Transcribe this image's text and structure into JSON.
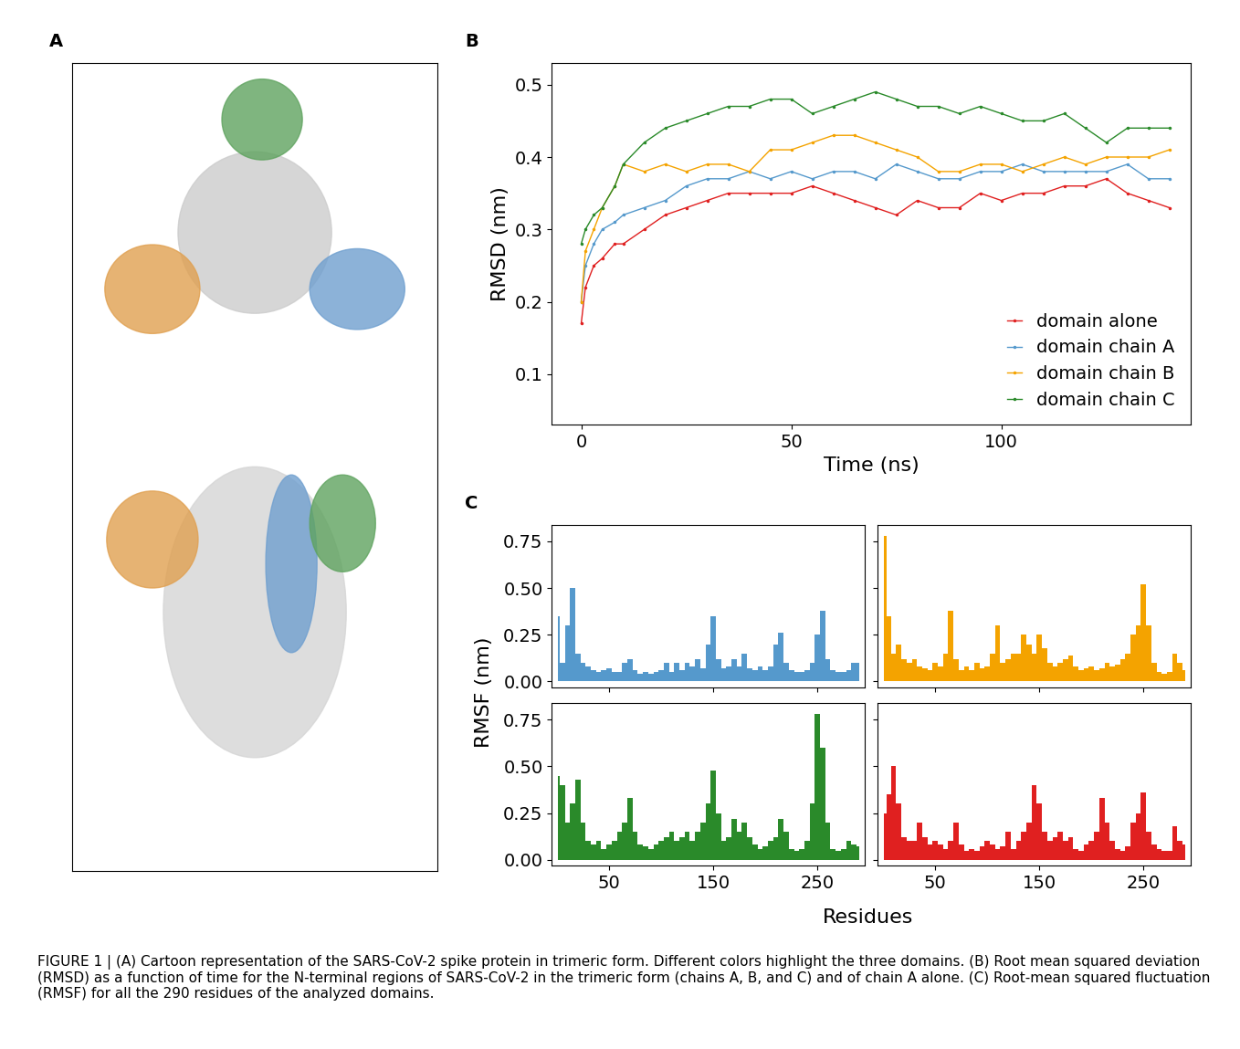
{
  "panel_labels": [
    "A",
    "B",
    "C"
  ],
  "caption": "FIGURE 1 | (A) Cartoon representation of the SARS-CoV-2 spike protein in trimeric form. Different colors highlight the three domains. (B) Root mean squared deviation (RMSD) as a function of time for the N-terminal regions of SARS-CoV-2 in the trimeric form (chains A, B, and C) and of chain A alone. (C) Root-mean squared fluctuation (RMSF) for all the 290 residues of the analyzed domains.",
  "chart_data": [
    {
      "type": "line",
      "marker": "point",
      "xlabel": "Time (ns)",
      "ylabel": "RMSD (nm)",
      "xlim": [
        -7,
        145
      ],
      "xticks": [
        0,
        50,
        100
      ],
      "ylim": [
        0.03,
        0.53
      ],
      "yticks": [
        0.1,
        0.2,
        0.3,
        0.4,
        0.5
      ],
      "legend": "lower right",
      "grid": false,
      "x": [
        0,
        1,
        3,
        5,
        8,
        10,
        15,
        20,
        25,
        30,
        35,
        40,
        45,
        50,
        55,
        60,
        65,
        70,
        75,
        80,
        85,
        90,
        95,
        100,
        105,
        110,
        115,
        120,
        125,
        130,
        135,
        140
      ],
      "series": [
        {
          "name": "domain alone",
          "color": "#e02020",
          "values": [
            0.17,
            0.22,
            0.25,
            0.26,
            0.28,
            0.28,
            0.3,
            0.32,
            0.33,
            0.34,
            0.35,
            0.35,
            0.35,
            0.35,
            0.36,
            0.35,
            0.34,
            0.33,
            0.32,
            0.34,
            0.33,
            0.33,
            0.35,
            0.34,
            0.35,
            0.35,
            0.36,
            0.36,
            0.37,
            0.35,
            0.34,
            0.33
          ]
        },
        {
          "name": "domain chain A",
          "color": "#5599cc",
          "values": [
            0.2,
            0.25,
            0.28,
            0.3,
            0.31,
            0.32,
            0.33,
            0.34,
            0.36,
            0.37,
            0.37,
            0.38,
            0.37,
            0.38,
            0.37,
            0.38,
            0.38,
            0.37,
            0.39,
            0.38,
            0.37,
            0.37,
            0.38,
            0.38,
            0.39,
            0.38,
            0.38,
            0.38,
            0.38,
            0.39,
            0.37,
            0.37
          ]
        },
        {
          "name": "domain chain B",
          "color": "#f4a300",
          "values": [
            0.2,
            0.27,
            0.3,
            0.33,
            0.36,
            0.39,
            0.38,
            0.39,
            0.38,
            0.39,
            0.39,
            0.38,
            0.41,
            0.41,
            0.42,
            0.43,
            0.43,
            0.42,
            0.41,
            0.4,
            0.38,
            0.38,
            0.39,
            0.39,
            0.38,
            0.39,
            0.4,
            0.39,
            0.4,
            0.4,
            0.4,
            0.41
          ]
        },
        {
          "name": "domain chain C",
          "color": "#2a8a2a",
          "values": [
            0.28,
            0.3,
            0.32,
            0.33,
            0.36,
            0.39,
            0.42,
            0.44,
            0.45,
            0.46,
            0.47,
            0.47,
            0.48,
            0.48,
            0.46,
            0.47,
            0.48,
            0.49,
            0.48,
            0.47,
            0.47,
            0.46,
            0.47,
            0.46,
            0.45,
            0.45,
            0.46,
            0.44,
            0.42,
            0.44,
            0.44,
            0.44
          ]
        }
      ]
    },
    {
      "type": "area",
      "xlabel": "Residues",
      "ylabel": "RMSF (nm)",
      "xlim": [
        -5,
        295
      ],
      "xticks": [
        50,
        150,
        250
      ],
      "ylim": [
        -0.03,
        0.84
      ],
      "yticks": [
        {
          "value": 0.0,
          "label": "0.00"
        },
        {
          "value": 0.25,
          "label": "0.25"
        },
        {
          "value": 0.5,
          "label": "0.50"
        },
        {
          "value": 0.75,
          "label": "0.75"
        }
      ],
      "x": [
        1,
        5,
        10,
        15,
        20,
        25,
        30,
        35,
        40,
        45,
        50,
        55,
        60,
        65,
        70,
        75,
        80,
        85,
        90,
        95,
        100,
        105,
        110,
        115,
        120,
        125,
        130,
        135,
        140,
        145,
        150,
        155,
        160,
        165,
        170,
        175,
        180,
        185,
        190,
        195,
        200,
        205,
        210,
        215,
        220,
        225,
        230,
        235,
        240,
        245,
        250,
        255,
        260,
        265,
        270,
        275,
        280,
        285,
        290
      ],
      "series": [
        {
          "color": "#5599cc",
          "values": [
            0.35,
            0.1,
            0.3,
            0.5,
            0.15,
            0.1,
            0.08,
            0.06,
            0.05,
            0.06,
            0.07,
            0.05,
            0.05,
            0.1,
            0.12,
            0.06,
            0.04,
            0.05,
            0.04,
            0.05,
            0.06,
            0.1,
            0.05,
            0.1,
            0.06,
            0.1,
            0.08,
            0.12,
            0.07,
            0.2,
            0.35,
            0.12,
            0.07,
            0.08,
            0.12,
            0.08,
            0.15,
            0.07,
            0.06,
            0.08,
            0.06,
            0.08,
            0.2,
            0.26,
            0.1,
            0.06,
            0.05,
            0.05,
            0.06,
            0.1,
            0.25,
            0.38,
            0.12,
            0.06,
            0.05,
            0.05,
            0.06,
            0.1,
            0.1
          ]
        },
        {
          "color": "#f4a300",
          "values": [
            0.78,
            0.35,
            0.15,
            0.2,
            0.12,
            0.1,
            0.12,
            0.08,
            0.07,
            0.06,
            0.1,
            0.08,
            0.15,
            0.38,
            0.12,
            0.06,
            0.08,
            0.06,
            0.1,
            0.07,
            0.08,
            0.15,
            0.3,
            0.1,
            0.12,
            0.15,
            0.15,
            0.25,
            0.2,
            0.15,
            0.25,
            0.18,
            0.1,
            0.08,
            0.1,
            0.12,
            0.14,
            0.08,
            0.06,
            0.07,
            0.08,
            0.06,
            0.07,
            0.1,
            0.08,
            0.09,
            0.12,
            0.15,
            0.25,
            0.3,
            0.52,
            0.3,
            0.1,
            0.05,
            0.04,
            0.05,
            0.15,
            0.1,
            0.06
          ]
        },
        {
          "color": "#2a8a2a",
          "values": [
            0.45,
            0.4,
            0.2,
            0.3,
            0.43,
            0.2,
            0.1,
            0.08,
            0.1,
            0.06,
            0.08,
            0.1,
            0.15,
            0.2,
            0.33,
            0.15,
            0.08,
            0.07,
            0.06,
            0.08,
            0.1,
            0.12,
            0.15,
            0.1,
            0.12,
            0.15,
            0.1,
            0.15,
            0.2,
            0.3,
            0.48,
            0.25,
            0.1,
            0.12,
            0.22,
            0.15,
            0.2,
            0.12,
            0.08,
            0.06,
            0.07,
            0.1,
            0.12,
            0.22,
            0.15,
            0.06,
            0.05,
            0.06,
            0.1,
            0.3,
            0.78,
            0.6,
            0.2,
            0.06,
            0.05,
            0.06,
            0.1,
            0.08,
            0.07
          ]
        },
        {
          "color": "#e02020",
          "values": [
            0.25,
            0.35,
            0.5,
            0.3,
            0.12,
            0.1,
            0.1,
            0.2,
            0.12,
            0.08,
            0.1,
            0.08,
            0.06,
            0.1,
            0.2,
            0.08,
            0.05,
            0.06,
            0.05,
            0.07,
            0.1,
            0.08,
            0.06,
            0.07,
            0.15,
            0.06,
            0.1,
            0.15,
            0.2,
            0.4,
            0.3,
            0.15,
            0.1,
            0.12,
            0.15,
            0.1,
            0.12,
            0.06,
            0.05,
            0.08,
            0.1,
            0.15,
            0.33,
            0.2,
            0.1,
            0.06,
            0.05,
            0.07,
            0.2,
            0.25,
            0.36,
            0.15,
            0.08,
            0.06,
            0.05,
            0.05,
            0.18,
            0.1,
            0.08
          ]
        }
      ]
    }
  ]
}
